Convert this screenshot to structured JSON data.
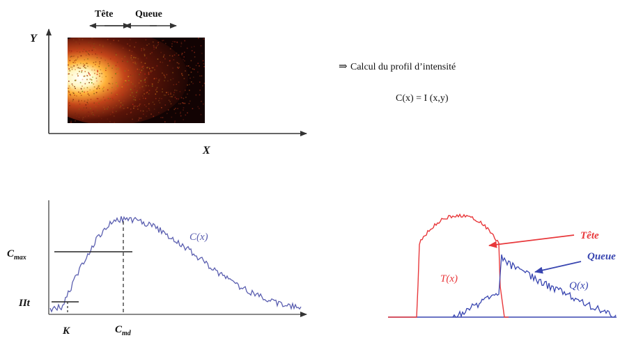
{
  "top_diagram": {
    "axis_y": "Y",
    "axis_x": "X",
    "tete": "Tête",
    "queue": "Queue"
  },
  "annotation": {
    "arrow_symbol": "⇒",
    "text": "Calcul du profil d’intensité",
    "formula": "C(x) = I (x,y)"
  },
  "profile_chart": {
    "curve_label": "C(x)",
    "cmax_label": "C",
    "cmax_sub": "max",
    "iit_label": "IIt",
    "k_label": "K",
    "cmd_label": "C",
    "cmd_sub": "md"
  },
  "split_chart": {
    "tete_label": "Tête",
    "queue_label": "Queue",
    "t_label": "T(x)",
    "q_label": "Q(x)"
  },
  "colors": {
    "curve_blue": "#5b5fb0",
    "tete_red": "#e8383b",
    "queue_blue": "#3845b0",
    "axis": "#333333"
  }
}
